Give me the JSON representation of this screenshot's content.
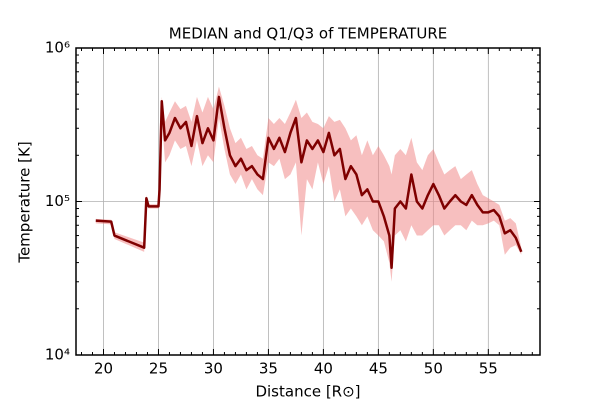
{
  "chart_data": {
    "type": "line",
    "title": "MEDIAN and Q1/Q3 of TEMPERATURE",
    "xlabel": "Distance [R⊙]",
    "ylabel": "Temperature [K]",
    "log_y": true,
    "grid": true,
    "x": [
      19.3,
      20.7,
      21.0,
      23.7,
      23.9,
      24.1,
      25.0,
      25.1,
      25.3,
      25.6,
      26.0,
      26.5,
      27.0,
      27.5,
      28.0,
      28.5,
      29.0,
      29.5,
      30.0,
      30.5,
      31.0,
      31.5,
      32.0,
      32.5,
      33.0,
      33.5,
      34.0,
      34.5,
      35.0,
      35.5,
      36.0,
      36.5,
      37.0,
      37.5,
      38.0,
      38.5,
      39.0,
      39.5,
      40.0,
      40.5,
      41.0,
      41.5,
      42.0,
      42.5,
      43.0,
      43.5,
      44.0,
      44.5,
      45.0,
      45.5,
      46.0,
      46.2,
      46.5,
      47.0,
      47.5,
      48.0,
      48.5,
      49.0,
      49.5,
      50.0,
      50.5,
      51.0,
      51.5,
      52.0,
      52.5,
      53.0,
      53.5,
      54.0,
      54.5,
      55.0,
      55.5,
      56.0,
      56.5,
      57.0,
      57.5,
      58.0
    ],
    "series": [
      {
        "color": "#7f0000",
        "values": [
          75000,
          74000,
          60000,
          50000,
          105000,
          93000,
          93000,
          120000,
          450000,
          250000,
          280000,
          350000,
          300000,
          330000,
          230000,
          360000,
          240000,
          300000,
          250000,
          480000,
          300000,
          200000,
          170000,
          190000,
          160000,
          170000,
          150000,
          140000,
          260000,
          220000,
          260000,
          210000,
          280000,
          350000,
          180000,
          250000,
          220000,
          250000,
          210000,
          280000,
          200000,
          220000,
          140000,
          170000,
          150000,
          110000,
          120000,
          100000,
          100000,
          80000,
          60000,
          37000,
          90000,
          100000,
          90000,
          150000,
          100000,
          90000,
          110000,
          130000,
          110000,
          90000,
          100000,
          110000,
          100000,
          95000,
          110000,
          95000,
          85000,
          85000,
          88000,
          80000,
          62000,
          65000,
          58000,
          47000
        ]
      }
    ],
    "band": {
      "color": "#f08080",
      "lower": [
        72000,
        71000,
        57000,
        47000,
        95000,
        90000,
        90000,
        100000,
        350000,
        180000,
        200000,
        250000,
        220000,
        230000,
        170000,
        250000,
        170000,
        200000,
        180000,
        350000,
        220000,
        150000,
        130000,
        150000,
        120000,
        140000,
        120000,
        110000,
        180000,
        170000,
        190000,
        140000,
        150000,
        180000,
        60000,
        140000,
        120000,
        180000,
        130000,
        170000,
        100000,
        120000,
        80000,
        90000,
        80000,
        70000,
        80000,
        65000,
        60000,
        55000,
        40000,
        30000,
        60000,
        65000,
        55000,
        70000,
        60000,
        60000,
        65000,
        70000,
        70000,
        60000,
        65000,
        70000,
        70000,
        65000,
        75000,
        70000,
        70000,
        72000,
        75000,
        70000,
        45000,
        50000,
        52000,
        45000
      ],
      "upper": [
        77000,
        76000,
        63000,
        54000,
        110000,
        96000,
        96000,
        150000,
        480000,
        330000,
        380000,
        450000,
        400000,
        420000,
        330000,
        480000,
        380000,
        480000,
        400000,
        560000,
        420000,
        300000,
        240000,
        260000,
        220000,
        230000,
        200000,
        190000,
        350000,
        320000,
        350000,
        320000,
        380000,
        460000,
        350000,
        380000,
        330000,
        320000,
        300000,
        360000,
        330000,
        340000,
        300000,
        250000,
        270000,
        200000,
        250000,
        200000,
        230000,
        200000,
        170000,
        150000,
        200000,
        220000,
        200000,
        260000,
        180000,
        160000,
        200000,
        220000,
        180000,
        150000,
        160000,
        170000,
        140000,
        150000,
        160000,
        130000,
        110000,
        105000,
        100000,
        95000,
        75000,
        78000,
        72000,
        50000
      ]
    },
    "xlim": [
      17.5,
      59.7
    ],
    "ylim": [
      10000,
      1000000
    ],
    "xticks": [
      20,
      25,
      30,
      35,
      40,
      45,
      50,
      55
    ],
    "yticks": [
      {
        "value": 10000,
        "label": "10⁴"
      },
      {
        "value": 100000,
        "label": "10⁵"
      },
      {
        "value": 1000000,
        "label": "10⁶"
      }
    ],
    "xminorticks": [
      18,
      19,
      21,
      22,
      23,
      24,
      26,
      27,
      28,
      29,
      31,
      32,
      33,
      34,
      36,
      37,
      38,
      39,
      41,
      42,
      43,
      44,
      46,
      47,
      48,
      49,
      51,
      52,
      53,
      54,
      56,
      57,
      58,
      59
    ],
    "yminorticks": [
      20000,
      30000,
      40000,
      50000,
      60000,
      70000,
      80000,
      90000,
      200000,
      300000,
      400000,
      500000,
      600000,
      700000,
      800000,
      900000
    ]
  }
}
